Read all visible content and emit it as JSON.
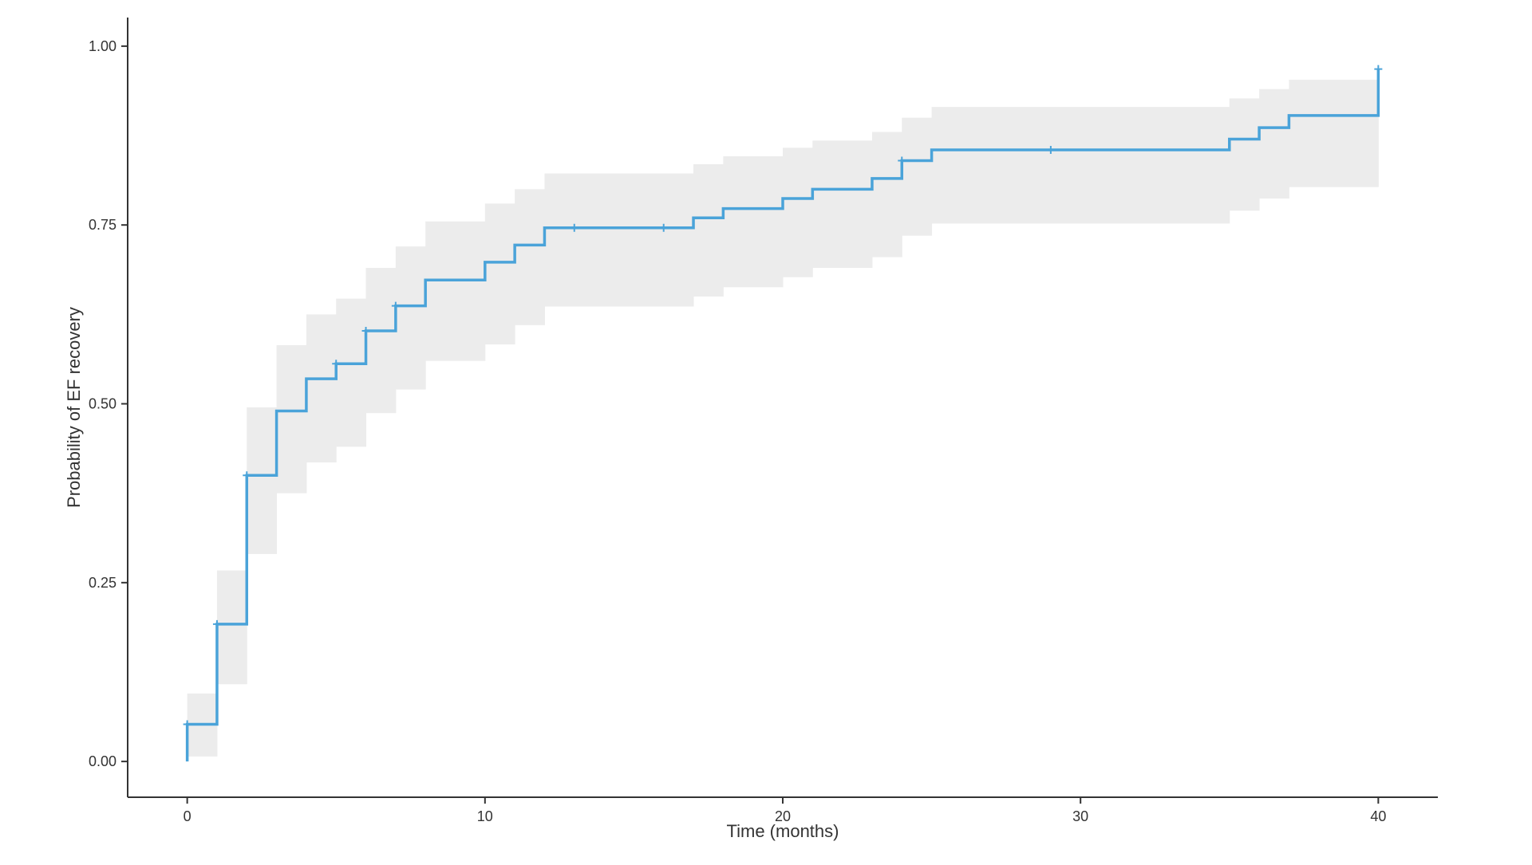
{
  "chart_data": {
    "type": "line",
    "step": "post",
    "title": "",
    "xlabel": "Time (months)",
    "ylabel": "Probability of EF recovery",
    "xlim": [
      -2,
      42
    ],
    "ylim": [
      -0.05,
      1.04
    ],
    "x_ticks": [
      0,
      10,
      20,
      30,
      40
    ],
    "x_tick_labels": [
      "0",
      "10",
      "20",
      "30",
      "40"
    ],
    "y_ticks": [
      0,
      0.25,
      0.5,
      0.75,
      1.0
    ],
    "y_tick_labels": [
      "0.00",
      "0.25",
      "0.50",
      "0.75",
      "1.00"
    ],
    "grid": false,
    "legend": "none",
    "colors": {
      "line": "#4aa3d9",
      "band": "#ececec",
      "axis": "#333333"
    },
    "series": [
      {
        "values": [
          {
            "x": 0,
            "y": 0.0,
            "lo": 0.0,
            "hi": 0.0
          },
          {
            "x": 0,
            "y": 0.052,
            "lo": 0.007,
            "hi": 0.095
          },
          {
            "x": 1,
            "y": 0.192,
            "lo": 0.108,
            "hi": 0.267
          },
          {
            "x": 2,
            "y": 0.4,
            "lo": 0.29,
            "hi": 0.495
          },
          {
            "x": 3,
            "y": 0.49,
            "lo": 0.375,
            "hi": 0.582
          },
          {
            "x": 4,
            "y": 0.535,
            "lo": 0.418,
            "hi": 0.625
          },
          {
            "x": 5,
            "y": 0.556,
            "lo": 0.44,
            "hi": 0.647
          },
          {
            "x": 6,
            "y": 0.602,
            "lo": 0.487,
            "hi": 0.69
          },
          {
            "x": 7,
            "y": 0.637,
            "lo": 0.52,
            "hi": 0.72
          },
          {
            "x": 8,
            "y": 0.673,
            "lo": 0.56,
            "hi": 0.755
          },
          {
            "x": 10,
            "y": 0.698,
            "lo": 0.583,
            "hi": 0.78
          },
          {
            "x": 11,
            "y": 0.722,
            "lo": 0.61,
            "hi": 0.8
          },
          {
            "x": 12,
            "y": 0.746,
            "lo": 0.636,
            "hi": 0.822
          },
          {
            "x": 17,
            "y": 0.76,
            "lo": 0.65,
            "hi": 0.835
          },
          {
            "x": 18,
            "y": 0.773,
            "lo": 0.663,
            "hi": 0.846
          },
          {
            "x": 20,
            "y": 0.787,
            "lo": 0.677,
            "hi": 0.858
          },
          {
            "x": 21,
            "y": 0.8,
            "lo": 0.69,
            "hi": 0.868
          },
          {
            "x": 23,
            "y": 0.815,
            "lo": 0.705,
            "hi": 0.88
          },
          {
            "x": 24,
            "y": 0.84,
            "lo": 0.735,
            "hi": 0.9
          },
          {
            "x": 25,
            "y": 0.855,
            "lo": 0.752,
            "hi": 0.915
          },
          {
            "x": 35,
            "y": 0.87,
            "lo": 0.77,
            "hi": 0.927
          },
          {
            "x": 36,
            "y": 0.886,
            "lo": 0.787,
            "hi": 0.94
          },
          {
            "x": 37,
            "y": 0.903,
            "lo": 0.803,
            "hi": 0.953
          },
          {
            "x": 40,
            "y": 0.968,
            "lo": 0.968,
            "hi": 0.968
          }
        ],
        "censor_marks": [
          {
            "x": 0,
            "y": 0.052
          },
          {
            "x": 1,
            "y": 0.192
          },
          {
            "x": 2,
            "y": 0.4
          },
          {
            "x": 5,
            "y": 0.556
          },
          {
            "x": 6,
            "y": 0.602
          },
          {
            "x": 7,
            "y": 0.637
          },
          {
            "x": 13,
            "y": 0.746
          },
          {
            "x": 16,
            "y": 0.746
          },
          {
            "x": 24,
            "y": 0.84
          },
          {
            "x": 29,
            "y": 0.855
          },
          {
            "x": 40,
            "y": 0.968
          }
        ]
      }
    ]
  }
}
